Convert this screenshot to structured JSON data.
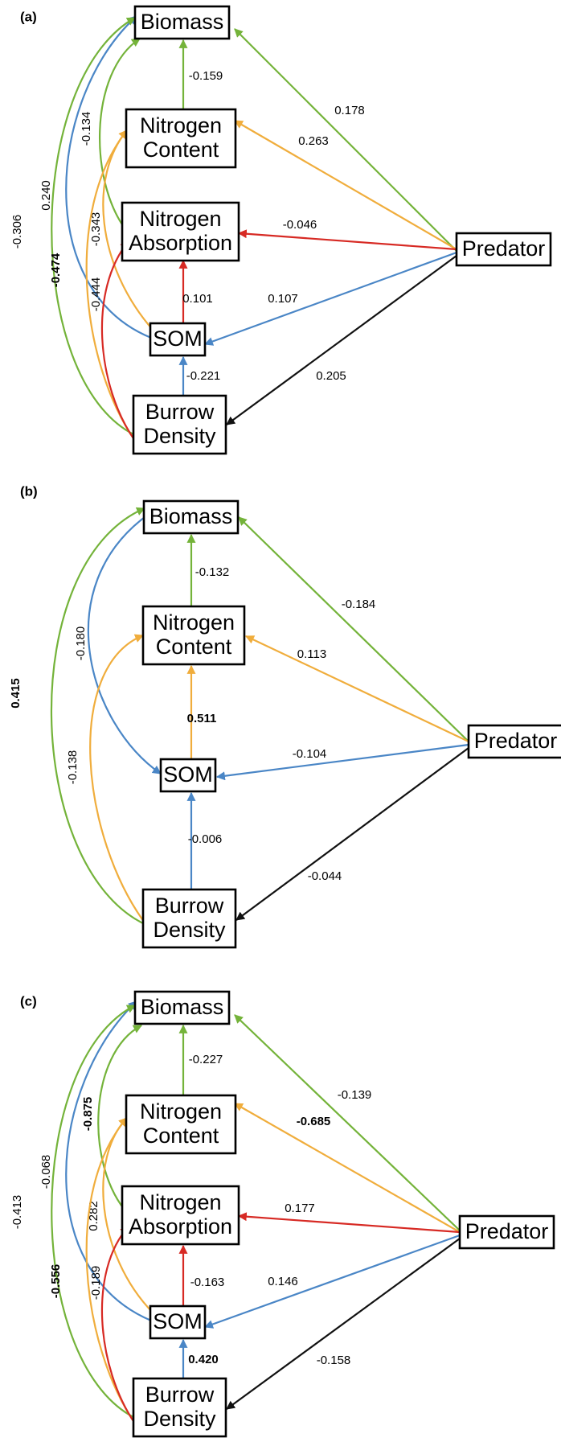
{
  "colors": {
    "green": "#74b33a",
    "orange": "#f0ad3c",
    "blue": "#4a86c6",
    "red": "#d72a24",
    "black": "#111111"
  },
  "panels": [
    {
      "label": "(a)",
      "nodes": {
        "biomass": [
          "Biomass"
        ],
        "nitrogen_content": [
          "Nitrogen",
          "Content"
        ],
        "nitrogen_absorption": [
          "Nitrogen",
          "Absorption"
        ],
        "som": [
          "SOM"
        ],
        "burrow_density": [
          "Burrow",
          "Density"
        ],
        "predator": [
          "Predator"
        ]
      },
      "edges": [
        {
          "from": "nitrogen_content",
          "to": "biomass",
          "color": "green",
          "coef": "-0.159",
          "bold": false
        },
        {
          "from": "nitrogen_absorption",
          "to": "biomass",
          "color": "green",
          "coef": "-0.134",
          "bold": false
        },
        {
          "from": "som",
          "to": "biomass",
          "color": "blue",
          "coef": "0.240",
          "bold": false
        },
        {
          "from": "burrow_density",
          "to": "biomass",
          "color": "green",
          "coef": "-0.306",
          "bold": false
        },
        {
          "from": "som",
          "to": "nitrogen_content",
          "color": "orange",
          "coef": "-0.343",
          "bold": false
        },
        {
          "from": "burrow_density",
          "to": "nitrogen_content",
          "color": "orange",
          "coef": "-0.474",
          "bold": true
        },
        {
          "from": "som",
          "to": "nitrogen_absorption",
          "color": "red",
          "coef": "0.101",
          "bold": false
        },
        {
          "from": "burrow_density",
          "to": "nitrogen_absorption",
          "color": "red",
          "coef": "-0.444",
          "bold": false
        },
        {
          "from": "burrow_density",
          "to": "som",
          "color": "blue",
          "coef": "-0.221",
          "bold": false
        },
        {
          "from": "predator",
          "to": "biomass",
          "color": "green",
          "coef": "0.178",
          "bold": false
        },
        {
          "from": "predator",
          "to": "nitrogen_content",
          "color": "orange",
          "coef": "0.263",
          "bold": false
        },
        {
          "from": "predator",
          "to": "nitrogen_absorption",
          "color": "red",
          "coef": "-0.046",
          "bold": false
        },
        {
          "from": "predator",
          "to": "som",
          "color": "blue",
          "coef": "0.107",
          "bold": false
        },
        {
          "from": "predator",
          "to": "burrow_density",
          "color": "black",
          "coef": "0.205",
          "bold": false
        }
      ]
    },
    {
      "label": "(b)",
      "nodes": {
        "biomass": [
          "Biomass"
        ],
        "nitrogen_content": [
          "Nitrogen",
          "Content"
        ],
        "som": [
          "SOM"
        ],
        "burrow_density": [
          "Burrow",
          "Density"
        ],
        "predator": [
          "Predator"
        ]
      },
      "edges": [
        {
          "from": "nitrogen_content",
          "to": "biomass",
          "color": "green",
          "coef": "-0.132",
          "bold": false
        },
        {
          "from": "som",
          "to": "biomass",
          "color": "blue",
          "coef": "-0.180",
          "bold": false
        },
        {
          "from": "burrow_density",
          "to": "biomass",
          "color": "green",
          "coef": "0.415",
          "bold": true
        },
        {
          "from": "som",
          "to": "nitrogen_content",
          "color": "orange",
          "coef": "0.511",
          "bold": true
        },
        {
          "from": "burrow_density",
          "to": "nitrogen_content",
          "color": "orange",
          "coef": "-0.138",
          "bold": false
        },
        {
          "from": "burrow_density",
          "to": "som",
          "color": "blue",
          "coef": "-0.006",
          "bold": false
        },
        {
          "from": "predator",
          "to": "biomass",
          "color": "green",
          "coef": "-0.184",
          "bold": false
        },
        {
          "from": "predator",
          "to": "nitrogen_content",
          "color": "orange",
          "coef": "0.113",
          "bold": false
        },
        {
          "from": "predator",
          "to": "som",
          "color": "blue",
          "coef": "-0.104",
          "bold": false
        },
        {
          "from": "predator",
          "to": "burrow_density",
          "color": "black",
          "coef": "-0.044",
          "bold": false
        }
      ]
    },
    {
      "label": "(c)",
      "nodes": {
        "biomass": [
          "Biomass"
        ],
        "nitrogen_content": [
          "Nitrogen",
          "Content"
        ],
        "nitrogen_absorption": [
          "Nitrogen",
          "Absorption"
        ],
        "som": [
          "SOM"
        ],
        "burrow_density": [
          "Burrow",
          "Density"
        ],
        "predator": [
          "Predator"
        ]
      },
      "edges": [
        {
          "from": "nitrogen_content",
          "to": "biomass",
          "color": "green",
          "coef": "-0.227",
          "bold": false
        },
        {
          "from": "nitrogen_absorption",
          "to": "biomass",
          "color": "green",
          "coef": "-0.875",
          "bold": true
        },
        {
          "from": "som",
          "to": "biomass",
          "color": "blue",
          "coef": "-0.068",
          "bold": false
        },
        {
          "from": "burrow_density",
          "to": "biomass",
          "color": "green",
          "coef": "-0.413",
          "bold": false
        },
        {
          "from": "som",
          "to": "nitrogen_content",
          "color": "orange",
          "coef": "0.282",
          "bold": false
        },
        {
          "from": "burrow_density",
          "to": "nitrogen_content",
          "color": "orange",
          "coef": "-0.556",
          "bold": true
        },
        {
          "from": "som",
          "to": "nitrogen_absorption",
          "color": "red",
          "coef": "-0.163",
          "bold": false
        },
        {
          "from": "burrow_density",
          "to": "nitrogen_absorption",
          "color": "red",
          "coef": "-0.189",
          "bold": false
        },
        {
          "from": "burrow_density",
          "to": "som",
          "color": "blue",
          "coef": "0.420",
          "bold": true
        },
        {
          "from": "predator",
          "to": "biomass",
          "color": "green",
          "coef": "-0.139",
          "bold": false
        },
        {
          "from": "predator",
          "to": "nitrogen_content",
          "color": "orange",
          "coef": "-0.685",
          "bold": true
        },
        {
          "from": "predator",
          "to": "nitrogen_absorption",
          "color": "red",
          "coef": "0.177",
          "bold": false
        },
        {
          "from": "predator",
          "to": "som",
          "color": "blue",
          "coef": "0.146",
          "bold": false
        },
        {
          "from": "predator",
          "to": "burrow_density",
          "color": "black",
          "coef": "-0.158",
          "bold": false
        }
      ]
    }
  ]
}
